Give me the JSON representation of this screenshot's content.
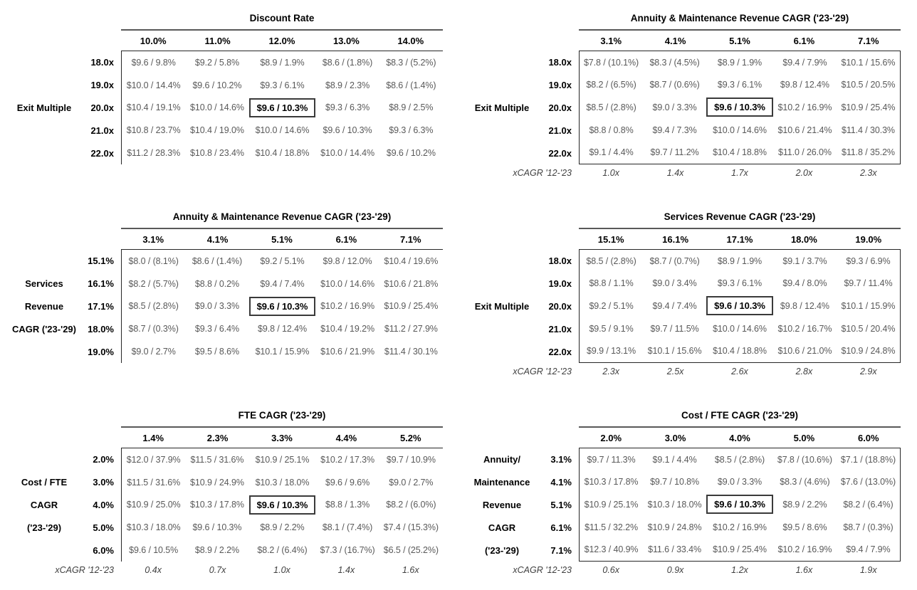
{
  "theme": {
    "background": "#ffffff",
    "label_text": "#000000",
    "cell_text": "#595959",
    "table_border": "#262626",
    "title_underline": "#595959",
    "highlight_border": "#3a3a3a"
  },
  "highlight_value": "$9.6 / 10.3%",
  "tables": [
    {
      "id": "discount-rate",
      "position": "left",
      "title": "Discount Rate",
      "axis_lines": [
        "",
        "",
        "Exit Multiple",
        "",
        ""
      ],
      "col_headers": [
        "10.0%",
        "11.0%",
        "12.0%",
        "13.0%",
        "14.0%"
      ],
      "row_headers": [
        "18.0x",
        "19.0x",
        "20.0x",
        "21.0x",
        "22.0x"
      ],
      "rows": [
        [
          "$9.6 / 9.8%",
          "$9.2 / 5.8%",
          "$8.9 / 1.9%",
          "$8.6 / (1.8%)",
          "$8.3 / (5.2%)"
        ],
        [
          "$10.0 / 14.4%",
          "$9.6 / 10.2%",
          "$9.3 / 6.1%",
          "$8.9 / 2.3%",
          "$8.6 / (1.4%)"
        ],
        [
          "$10.4 / 19.1%",
          "$10.0 / 14.6%",
          "$9.6 / 10.3%",
          "$9.3 / 6.3%",
          "$8.9 / 2.5%"
        ],
        [
          "$10.8 / 23.7%",
          "$10.4 / 19.0%",
          "$10.0 / 14.6%",
          "$9.6 / 10.3%",
          "$9.3 / 6.3%"
        ],
        [
          "$11.2 / 28.3%",
          "$10.8 / 23.4%",
          "$10.4 / 18.8%",
          "$10.0 / 14.4%",
          "$9.6 / 10.2%"
        ]
      ],
      "highlight": {
        "row": 2,
        "col": 2
      },
      "border_style": "left-top",
      "xcagr": null
    },
    {
      "id": "annuity-maintenance-cagr-vs-exit-multiple",
      "position": "right",
      "title": "Annuity & Maintenance Revenue CAGR ('23-'29)",
      "axis_lines": [
        "",
        "",
        "Exit Multiple",
        "",
        ""
      ],
      "col_headers": [
        "3.1%",
        "4.1%",
        "5.1%",
        "6.1%",
        "7.1%"
      ],
      "row_headers": [
        "18.0x",
        "19.0x",
        "20.0x",
        "21.0x",
        "22.0x"
      ],
      "rows": [
        [
          "$7.8 / (10.1%)",
          "$8.3 / (4.5%)",
          "$8.9 / 1.9%",
          "$9.4 / 7.9%",
          "$10.1 / 15.6%"
        ],
        [
          "$8.2 / (6.5%)",
          "$8.7 / (0.6%)",
          "$9.3 / 6.1%",
          "$9.8 / 12.4%",
          "$10.5 / 20.5%"
        ],
        [
          "$8.5 / (2.8%)",
          "$9.0 / 3.3%",
          "$9.6 / 10.3%",
          "$10.2 / 16.9%",
          "$10.9 / 25.4%"
        ],
        [
          "$8.8 / 0.8%",
          "$9.4 / 7.3%",
          "$10.0 / 14.6%",
          "$10.6 / 21.4%",
          "$11.4 / 30.3%"
        ],
        [
          "$9.1 / 4.4%",
          "$9.7 / 11.2%",
          "$10.4 / 18.8%",
          "$11.0 / 26.0%",
          "$11.8 / 35.2%"
        ]
      ],
      "highlight": {
        "row": 2,
        "col": 2
      },
      "border_style": "box",
      "xcagr": {
        "label": "xCAGR '12-'23",
        "values": [
          "1.0x",
          "1.4x",
          "1.7x",
          "2.0x",
          "2.3x"
        ]
      }
    },
    {
      "id": "annuity-maintenance-cagr-vs-services-cagr",
      "position": "left",
      "title": "Annuity & Maintenance Revenue CAGR ('23-'29)",
      "axis_lines": [
        "",
        "Services",
        "Revenue",
        "CAGR ('23-'29)",
        ""
      ],
      "col_headers": [
        "3.1%",
        "4.1%",
        "5.1%",
        "6.1%",
        "7.1%"
      ],
      "row_headers": [
        "15.1%",
        "16.1%",
        "17.1%",
        "18.0%",
        "19.0%"
      ],
      "rows": [
        [
          "$8.0 / (8.1%)",
          "$8.6 / (1.4%)",
          "$9.2 / 5.1%",
          "$9.8 / 12.0%",
          "$10.4 / 19.6%"
        ],
        [
          "$8.2 / (5.7%)",
          "$8.8 / 0.2%",
          "$9.4 / 7.4%",
          "$10.0 / 14.6%",
          "$10.6 / 21.8%"
        ],
        [
          "$8.5 / (2.8%)",
          "$9.0 / 3.3%",
          "$9.6 / 10.3%",
          "$10.2 / 16.9%",
          "$10.9 / 25.4%"
        ],
        [
          "$8.7 / (0.3%)",
          "$9.3 / 6.4%",
          "$9.8 / 12.4%",
          "$10.4 / 19.2%",
          "$11.2 / 27.9%"
        ],
        [
          "$9.0 / 2.7%",
          "$9.5 / 8.6%",
          "$10.1 / 15.9%",
          "$10.6 / 21.9%",
          "$11.4 / 30.1%"
        ]
      ],
      "highlight": {
        "row": 2,
        "col": 2
      },
      "border_style": "left-top",
      "xcagr": null
    },
    {
      "id": "services-cagr-vs-exit-multiple",
      "position": "right",
      "title": "Services Revenue CAGR ('23-'29)",
      "axis_lines": [
        "",
        "",
        "Exit Multiple",
        "",
        ""
      ],
      "col_headers": [
        "15.1%",
        "16.1%",
        "17.1%",
        "18.0%",
        "19.0%"
      ],
      "row_headers": [
        "18.0x",
        "19.0x",
        "20.0x",
        "21.0x",
        "22.0x"
      ],
      "rows": [
        [
          "$8.5 / (2.8%)",
          "$8.7 / (0.7%)",
          "$8.9 / 1.9%",
          "$9.1 / 3.7%",
          "$9.3 / 6.9%"
        ],
        [
          "$8.8 / 1.1%",
          "$9.0 / 3.4%",
          "$9.3 / 6.1%",
          "$9.4 / 8.0%",
          "$9.7 / 11.4%"
        ],
        [
          "$9.2 / 5.1%",
          "$9.4 / 7.4%",
          "$9.6 / 10.3%",
          "$9.8 / 12.4%",
          "$10.1 / 15.9%"
        ],
        [
          "$9.5 / 9.1%",
          "$9.7 / 11.5%",
          "$10.0 / 14.6%",
          "$10.2 / 16.7%",
          "$10.5 / 20.4%"
        ],
        [
          "$9.9 / 13.1%",
          "$10.1 / 15.6%",
          "$10.4 / 18.8%",
          "$10.6 / 21.0%",
          "$10.9 / 24.8%"
        ]
      ],
      "highlight": {
        "row": 2,
        "col": 2
      },
      "border_style": "box",
      "xcagr": {
        "label": "xCAGR '12-'23",
        "values": [
          "2.3x",
          "2.5x",
          "2.6x",
          "2.8x",
          "2.9x"
        ]
      }
    },
    {
      "id": "fte-cagr-vs-cost-fte-cagr",
      "position": "left",
      "title": "FTE CAGR ('23-'29)",
      "axis_lines": [
        "",
        "Cost / FTE",
        "CAGR",
        "('23-'29)",
        ""
      ],
      "col_headers": [
        "1.4%",
        "2.3%",
        "3.3%",
        "4.4%",
        "5.2%"
      ],
      "row_headers": [
        "2.0%",
        "3.0%",
        "4.0%",
        "5.0%",
        "6.0%"
      ],
      "rows": [
        [
          "$12.0 / 37.9%",
          "$11.5 / 31.6%",
          "$10.9 / 25.1%",
          "$10.2 / 17.3%",
          "$9.7 / 10.9%"
        ],
        [
          "$11.5 / 31.6%",
          "$10.9 / 24.9%",
          "$10.3 / 18.0%",
          "$9.6 / 9.6%",
          "$9.0 / 2.7%"
        ],
        [
          "$10.9 / 25.0%",
          "$10.3 / 17.8%",
          "$9.6 / 10.3%",
          "$8.8 / 1.3%",
          "$8.2 / (6.0%)"
        ],
        [
          "$10.3 / 18.0%",
          "$9.6 / 10.3%",
          "$8.9 / 2.2%",
          "$8.1 / (7.4%)",
          "$7.4 / (15.3%)"
        ],
        [
          "$9.6 / 10.5%",
          "$8.9 / 2.2%",
          "$8.2 / (6.4%)",
          "$7.3 / (16.7%)",
          "$6.5 / (25.2%)"
        ]
      ],
      "highlight": {
        "row": 2,
        "col": 2
      },
      "border_style": "left-top",
      "xcagr": {
        "label": "xCAGR '12-'23",
        "values": [
          "0.4x",
          "0.7x",
          "1.0x",
          "1.4x",
          "1.6x"
        ]
      }
    },
    {
      "id": "cost-fte-cagr-vs-annuity-maintenance-cagr",
      "position": "right",
      "title": "Cost / FTE CAGR ('23-'29)",
      "axis_lines": [
        "Annuity/",
        "Maintenance",
        "Revenue",
        "CAGR",
        "('23-'29)"
      ],
      "col_headers": [
        "2.0%",
        "3.0%",
        "4.0%",
        "5.0%",
        "6.0%"
      ],
      "row_headers": [
        "3.1%",
        "4.1%",
        "5.1%",
        "6.1%",
        "7.1%"
      ],
      "rows": [
        [
          "$9.7 / 11.3%",
          "$9.1 / 4.4%",
          "$8.5 / (2.8%)",
          "$7.8 / (10.6%)",
          "$7.1 / (18.8%)"
        ],
        [
          "$10.3 / 17.8%",
          "$9.7 / 10.8%",
          "$9.0 / 3.3%",
          "$8.3 / (4.6%)",
          "$7.6 / (13.0%)"
        ],
        [
          "$10.9 / 25.1%",
          "$10.3 / 18.0%",
          "$9.6 / 10.3%",
          "$8.9 / 2.2%",
          "$8.2 / (6.4%)"
        ],
        [
          "$11.5 / 32.2%",
          "$10.9 / 24.8%",
          "$10.2 / 16.9%",
          "$9.5 / 8.6%",
          "$8.7 / (0.3%)"
        ],
        [
          "$12.3 / 40.9%",
          "$11.6 / 33.4%",
          "$10.9 / 25.4%",
          "$10.2 / 16.9%",
          "$9.4 / 7.9%"
        ]
      ],
      "highlight": {
        "row": 2,
        "col": 2
      },
      "border_style": "box",
      "xcagr": {
        "label": "xCAGR '12-'23",
        "values": [
          "0.6x",
          "0.9x",
          "1.2x",
          "1.6x",
          "1.9x"
        ]
      }
    }
  ]
}
